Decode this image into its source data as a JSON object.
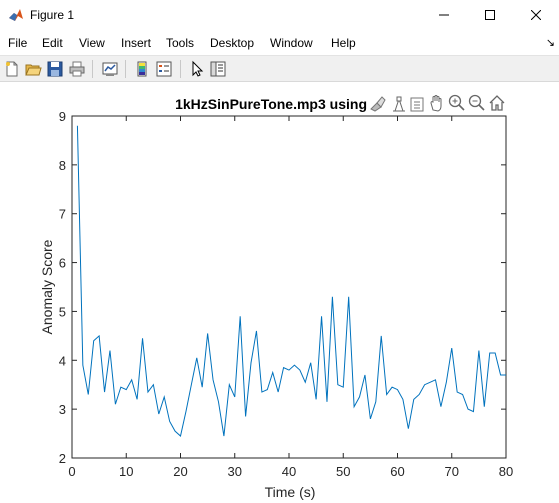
{
  "window": {
    "title": "Figure 1",
    "icon": "matlab-icon",
    "controls": [
      "minimize-icon",
      "maximize-icon",
      "close-icon"
    ]
  },
  "menu": {
    "items": [
      "File",
      "Edit",
      "View",
      "Insert",
      "Tools",
      "Desktop",
      "Window",
      "Help"
    ],
    "overflow_glyph": "↘"
  },
  "toolbar": {
    "icons": [
      "new-figure-icon",
      "open-file-icon",
      "save-icon",
      "print-icon",
      "link-plot-icon",
      "insert-colorbar-icon",
      "insert-legend-icon",
      "select-pointer-icon",
      "property-editor-icon"
    ]
  },
  "axes_toolbar": {
    "icons": [
      "brush-icon",
      "data-tips-icon",
      "rotate-icon",
      "pan-icon",
      "zoom-in-icon",
      "zoom-out-icon",
      "home-icon"
    ]
  },
  "colors": {
    "line": "#0072bd",
    "axis": "#262626"
  },
  "chart_data": {
    "type": "line",
    "title": "1kHzSinPureTone.mp3 using",
    "xlabel": "Time (s)",
    "ylabel": "Anomaly Score",
    "xlim": [
      0,
      80
    ],
    "ylim": [
      2,
      9
    ],
    "xticks": [
      0,
      10,
      20,
      30,
      40,
      50,
      60,
      70,
      80
    ],
    "yticks": [
      2,
      3,
      4,
      5,
      6,
      7,
      8,
      9
    ],
    "grid": false,
    "series": [
      {
        "x": [
          1,
          2,
          3,
          4,
          5,
          6,
          7,
          8,
          9,
          10,
          11,
          12,
          13,
          14,
          15,
          16,
          17,
          18,
          19,
          20,
          21,
          22,
          23,
          24,
          25,
          26,
          27,
          28,
          29,
          30,
          31,
          32,
          33,
          34,
          35,
          36,
          37,
          38,
          39,
          40,
          41,
          42,
          43,
          44,
          45,
          46,
          47,
          48,
          49,
          50,
          51,
          52,
          53,
          54,
          55,
          56,
          57,
          58,
          59,
          60,
          61,
          62,
          63,
          64,
          65,
          66,
          67,
          68,
          69,
          70,
          71,
          72,
          73,
          74,
          75,
          76,
          77,
          78,
          79,
          80
        ],
        "y": [
          8.8,
          3.9,
          3.3,
          4.4,
          4.5,
          3.35,
          4.2,
          3.1,
          3.45,
          3.4,
          3.6,
          3.2,
          4.45,
          3.35,
          3.5,
          2.9,
          3.25,
          2.75,
          2.55,
          2.45,
          2.95,
          3.5,
          4.05,
          3.45,
          4.55,
          3.6,
          3.15,
          2.45,
          3.5,
          3.25,
          4.9,
          2.85,
          3.95,
          4.6,
          3.35,
          3.4,
          3.75,
          3.35,
          3.85,
          3.8,
          3.9,
          3.8,
          3.55,
          3.95,
          3.2,
          4.9,
          3.15,
          5.3,
          3.5,
          3.45,
          5.3,
          3.05,
          3.25,
          3.7,
          2.8,
          3.15,
          4.5,
          3.3,
          3.45,
          3.4,
          3.2,
          2.6,
          3.2,
          3.3,
          3.5,
          3.55,
          3.6,
          3.05,
          3.55,
          4.25,
          3.35,
          3.3,
          3.0,
          2.95,
          4.2,
          3.05,
          4.15,
          4.15,
          3.7,
          3.7
        ]
      }
    ]
  }
}
